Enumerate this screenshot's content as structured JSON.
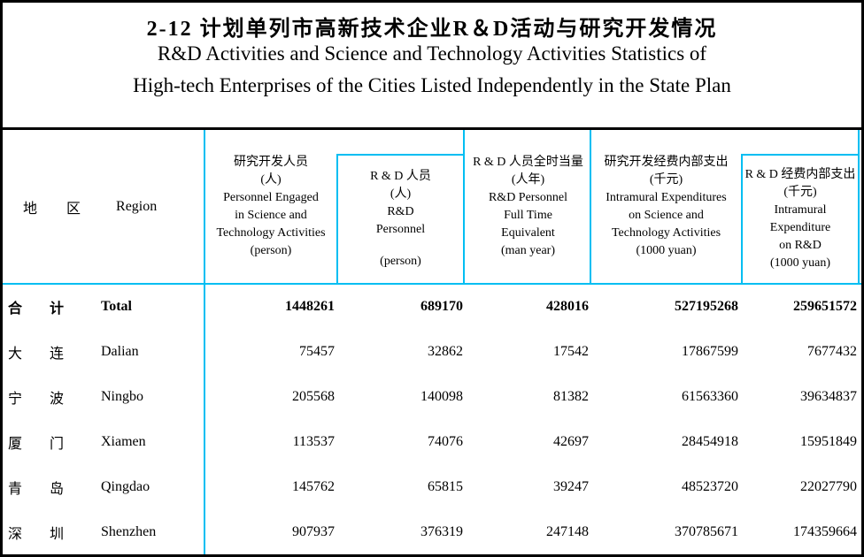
{
  "title": {
    "zh": "2-12  计划单列市高新技术企业R＆D活动与研究开发情况",
    "en_line1": "R&D Activities and Science and Technology Activities Statistics of",
    "en_line2": "High-tech Enterprises of the Cities Listed Independently in the State Plan"
  },
  "colors": {
    "table_line": "#00BEF2",
    "frame": "#000000",
    "background": "#FFFFFF",
    "text": "#000000"
  },
  "table": {
    "region_header": {
      "zh1": "地",
      "zh2": "区",
      "en": "Region"
    },
    "columns": [
      {
        "zh": "研究开发人员",
        "unit_zh": "(人)",
        "en1": "Personnel Engaged",
        "en2": "in Science and",
        "en3": "Technology Activities",
        "unit_en": "(person)",
        "boxed": false
      },
      {
        "zh": "R & D 人员",
        "unit_zh": "(人)",
        "en1": "R&D",
        "en2": "Personnel",
        "en3": "",
        "unit_en": "(person)",
        "boxed": true
      },
      {
        "zh": "R & D 人员全时当量",
        "unit_zh": "(人年)",
        "en1": "R&D Personnel",
        "en2": "Full Time",
        "en3": "Equivalent",
        "unit_en": "(man year)",
        "boxed": false
      },
      {
        "zh": "研究开发经费内部支出",
        "unit_zh": "(千元)",
        "en1": "Intramural Expenditures",
        "en2": "on Science and",
        "en3": "Technology Activities",
        "unit_en": "(1000 yuan)",
        "boxed": false
      },
      {
        "zh": "R & D 经费内部支出",
        "unit_zh": "(千元)",
        "en1": "Intramural",
        "en2": "Expenditure",
        "en3": "on R&D",
        "unit_en": "(1000 yuan)",
        "boxed": true
      }
    ],
    "rows": [
      {
        "zh1": "合",
        "zh2": "计",
        "en": "Total",
        "bold": true,
        "values": [
          "1448261",
          "689170",
          "428016",
          "527195268",
          "259651572"
        ]
      },
      {
        "zh1": "大",
        "zh2": "连",
        "en": "Dalian",
        "bold": false,
        "values": [
          "75457",
          "32862",
          "17542",
          "17867599",
          "7677432"
        ]
      },
      {
        "zh1": "宁",
        "zh2": "波",
        "en": "Ningbo",
        "bold": false,
        "values": [
          "205568",
          "140098",
          "81382",
          "61563360",
          "39634837"
        ]
      },
      {
        "zh1": "厦",
        "zh2": "门",
        "en": "Xiamen",
        "bold": false,
        "values": [
          "113537",
          "74076",
          "42697",
          "28454918",
          "15951849"
        ]
      },
      {
        "zh1": "青",
        "zh2": "岛",
        "en": "Qingdao",
        "bold": false,
        "values": [
          "145762",
          "65815",
          "39247",
          "48523720",
          "22027790"
        ]
      },
      {
        "zh1": "深",
        "zh2": "圳",
        "en": "Shenzhen",
        "bold": false,
        "values": [
          "907937",
          "376319",
          "247148",
          "370785671",
          "174359664"
        ]
      }
    ]
  }
}
